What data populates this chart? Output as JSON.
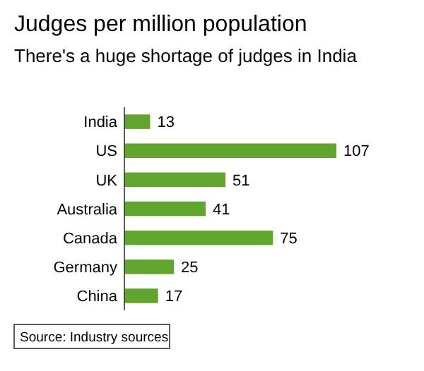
{
  "chart_data": {
    "type": "bar",
    "orientation": "horizontal",
    "title": "Judges per million population",
    "subtitle": "There's a huge shortage of judges in India",
    "categories": [
      "India",
      "US",
      "UK",
      "Australia",
      "Canada",
      "Germany",
      "China"
    ],
    "values": [
      13,
      107,
      51,
      41,
      75,
      25,
      17
    ],
    "color": "#5fa52e",
    "data_labels": true,
    "annotations": [
      "Source: Industry sources"
    ]
  }
}
